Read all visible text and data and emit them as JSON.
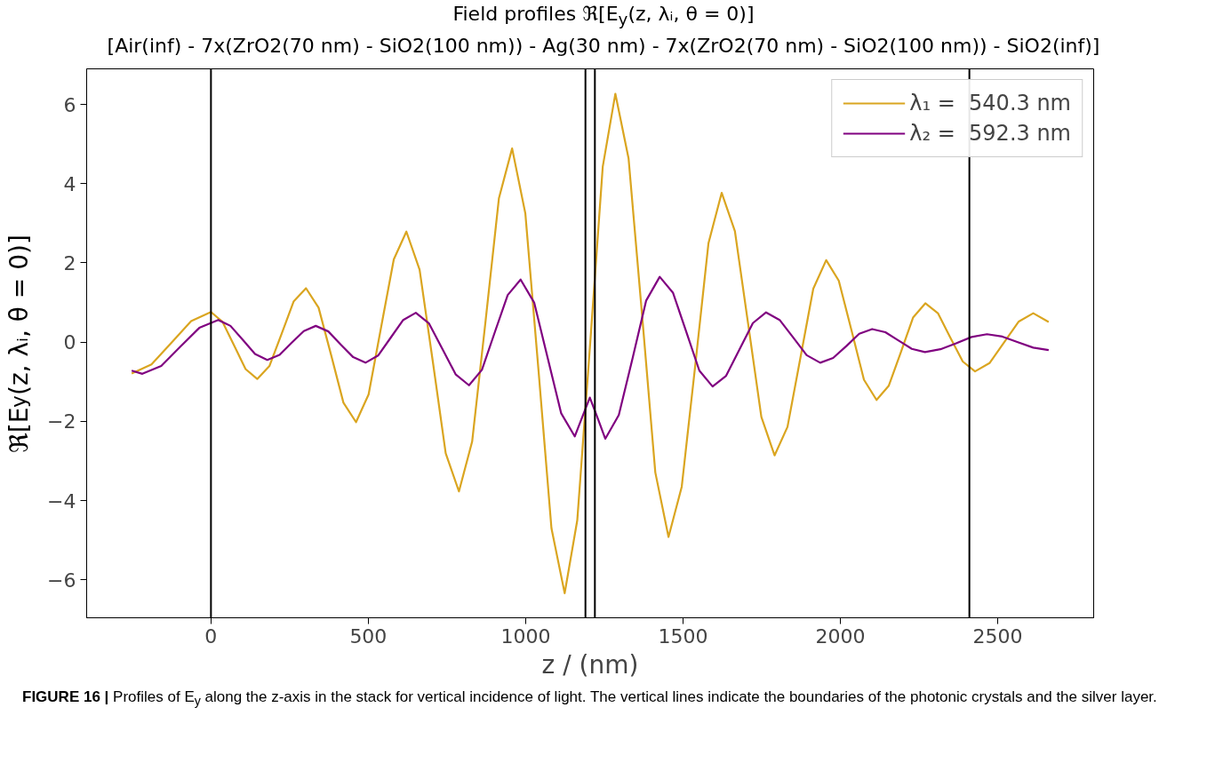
{
  "chart_data": {
    "type": "line",
    "title": "Field profiles ℜ[E$_{y}$(z, λᵢ, θ = 0)]",
    "subtitle": "[Air(inf) - 7x(ZrO2(70 nm) - SiO2(100 nm)) - Ag(30 nm) - 7x(ZrO2(70 nm) - SiO2(100 nm)) - SiO2(inf)]",
    "xlabel": "z / (nm)",
    "ylabel": "ℜ[E$_{y}$(z, λᵢ, θ = 0)]",
    "xlim": [
      -395,
      2805
    ],
    "ylim": [
      -6.96,
      6.9
    ],
    "xticks": [
      0,
      500,
      1000,
      1500,
      2000,
      2500
    ],
    "yticks": [
      {
        "value": -6,
        "label": "−6"
      },
      {
        "value": -4,
        "label": "−4"
      },
      {
        "value": -2,
        "label": "−2"
      },
      0,
      2,
      4,
      6
    ],
    "grid": false,
    "legend": "top right",
    "line_style": "solid",
    "marker": "none",
    "series": [
      {
        "name": "λ₁ =  540.3 nm",
        "color": "#daa520",
        "x": [
          -252,
          -189,
          -126,
          -63,
          0,
          37,
          74,
          110,
          147,
          186,
          225,
          263,
          302,
          342,
          382,
          421,
          461,
          501,
          541,
          581,
          621,
          663,
          705,
          746,
          788,
          830,
          873,
          915,
          957,
          999,
          1041,
          1082,
          1124,
          1164,
          1205,
          1245,
          1285,
          1327,
          1370,
          1412,
          1454,
          1496,
          1539,
          1581,
          1623,
          1665,
          1707,
          1749,
          1791,
          1832,
          1873,
          1914,
          1955,
          1995,
          2035,
          2075,
          2115,
          2154,
          2193,
          2231,
          2270,
          2310,
          2349,
          2389,
          2428,
          2474,
          2520,
          2567,
          2613,
          2662
        ],
        "values": [
          -0.79,
          -0.56,
          -0.02,
          0.53,
          0.76,
          0.51,
          -0.09,
          -0.68,
          -0.93,
          -0.6,
          0.22,
          1.03,
          1.36,
          0.87,
          -0.33,
          -1.53,
          -2.02,
          -1.32,
          0.39,
          2.09,
          2.79,
          1.83,
          -0.49,
          -2.81,
          -3.77,
          -2.51,
          0.56,
          3.63,
          4.89,
          3.25,
          -0.73,
          -4.7,
          -6.34,
          -4.5,
          -0.04,
          4.43,
          6.27,
          4.64,
          0.68,
          -3.29,
          -4.92,
          -3.65,
          -0.58,
          2.5,
          3.77,
          2.8,
          0.46,
          -1.89,
          -2.86,
          -2.14,
          -0.4,
          1.35,
          2.07,
          1.55,
          0.31,
          -0.95,
          -1.46,
          -1.1,
          -0.24,
          0.62,
          0.98,
          0.73,
          0.12,
          -0.49,
          -0.74,
          -0.53,
          -0.01,
          0.52,
          0.73,
          0.51
        ]
      },
      {
        "name": "λ₂ =  592.3 nm",
        "color": "#800080",
        "x": [
          -252,
          -218,
          -158,
          -98,
          -37,
          23,
          62,
          101,
          140,
          179,
          218,
          256,
          295,
          333,
          373,
          412,
          452,
          491,
          531,
          571,
          611,
          651,
          693,
          736,
          778,
          820,
          861,
          902,
          943,
          984,
          1027,
          1070,
          1113,
          1156,
          1180,
          1204,
          1229,
          1253,
          1296,
          1340,
          1383,
          1426,
          1468,
          1510,
          1552,
          1594,
          1637,
          1679,
          1722,
          1764,
          1807,
          1850,
          1893,
          1936,
          1977,
          2019,
          2060,
          2101,
          2143,
          2185,
          2227,
          2269,
          2318,
          2368,
          2417,
          2466,
          2515,
          2564,
          2613,
          2662
        ],
        "values": [
          -0.72,
          -0.8,
          -0.6,
          -0.12,
          0.36,
          0.56,
          0.41,
          0.06,
          -0.3,
          -0.45,
          -0.32,
          -0.02,
          0.28,
          0.41,
          0.27,
          -0.06,
          -0.38,
          -0.52,
          -0.34,
          0.11,
          0.56,
          0.74,
          0.47,
          -0.18,
          -0.82,
          -1.09,
          -0.7,
          0.25,
          1.19,
          1.58,
          1.0,
          -0.4,
          -1.8,
          -2.38,
          -1.89,
          -1.4,
          -1.92,
          -2.44,
          -1.84,
          -0.4,
          1.05,
          1.65,
          1.25,
          0.27,
          -0.72,
          -1.12,
          -0.85,
          -0.19,
          0.48,
          0.75,
          0.56,
          0.12,
          -0.33,
          -0.52,
          -0.4,
          -0.1,
          0.21,
          0.33,
          0.25,
          0.04,
          -0.17,
          -0.25,
          -0.18,
          -0.03,
          0.13,
          0.2,
          0.14,
          0.0,
          -0.14,
          -0.2
        ]
      }
    ],
    "ref_lines": [
      {
        "axis": "x",
        "value": 0,
        "color": "#000000"
      },
      {
        "axis": "x",
        "value": 1190,
        "color": "#000000"
      },
      {
        "axis": "x",
        "value": 1220,
        "color": "#000000"
      },
      {
        "axis": "x",
        "value": 2410,
        "color": "#000000"
      }
    ],
    "annotations": [
      "FIGURE 16 | Profiles of E$_{y}$ along the z-axis in the stack for vertical incidence of light. The vertical lines indicate the boundaries of the photonic crystals and the silver layer."
    ]
  }
}
